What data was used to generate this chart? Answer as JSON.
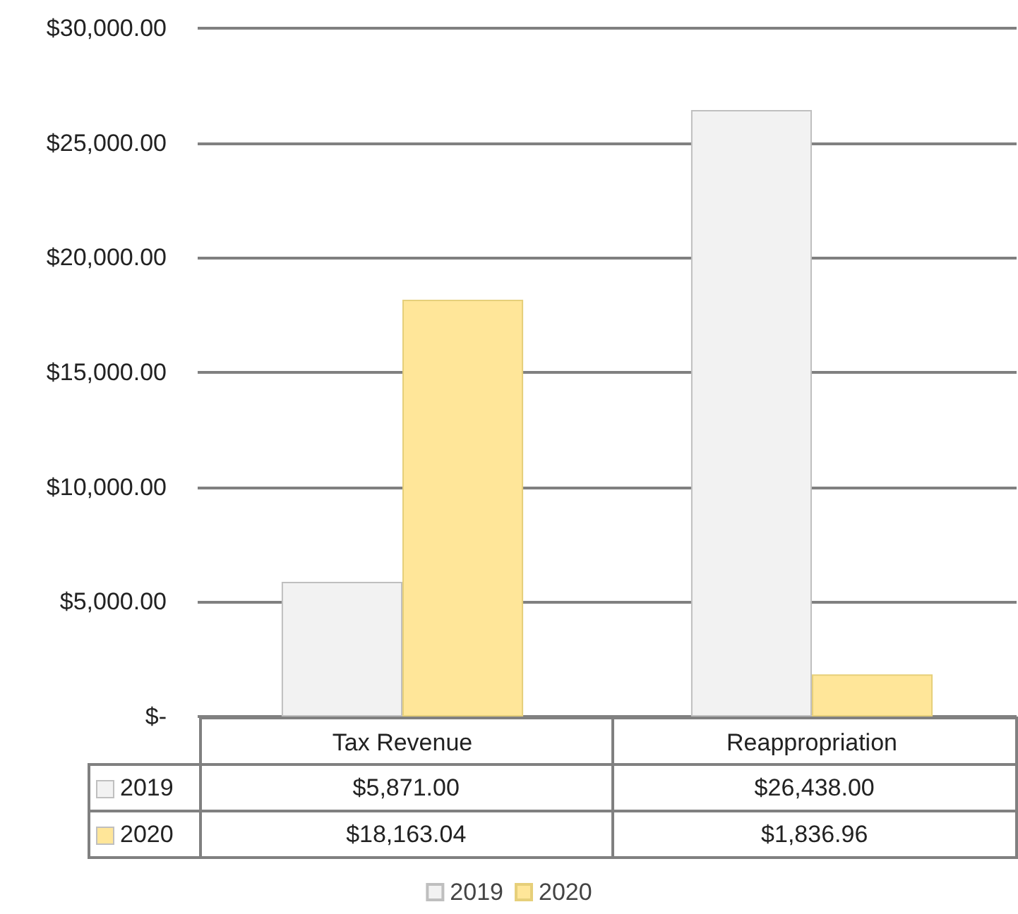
{
  "chart_data": {
    "type": "bar",
    "categories": [
      "Tax Revenue",
      "Reappropriation"
    ],
    "series": [
      {
        "name": "2019",
        "color": "#f2f2f2",
        "values": [
          5871.0,
          26438.0
        ],
        "value_labels": [
          "$5,871.00",
          "$26,438.00"
        ]
      },
      {
        "name": "2020",
        "color": "#ffe699",
        "values": [
          18163.04,
          1836.96
        ],
        "value_labels": [
          "$18,163.04",
          "$1,836.96"
        ]
      }
    ],
    "ylim": [
      0,
      30000
    ],
    "yticks": [
      {
        "value": 0,
        "label": "$-"
      },
      {
        "value": 5000,
        "label": "$5,000.00"
      },
      {
        "value": 10000,
        "label": "$10,000.00"
      },
      {
        "value": 15000,
        "label": "$15,000.00"
      },
      {
        "value": 20000,
        "label": "$20,000.00"
      },
      {
        "value": 25000,
        "label": "$25,000.00"
      },
      {
        "value": 30000,
        "label": "$30,000.00"
      }
    ],
    "grid": "y",
    "legend": "bottom"
  }
}
